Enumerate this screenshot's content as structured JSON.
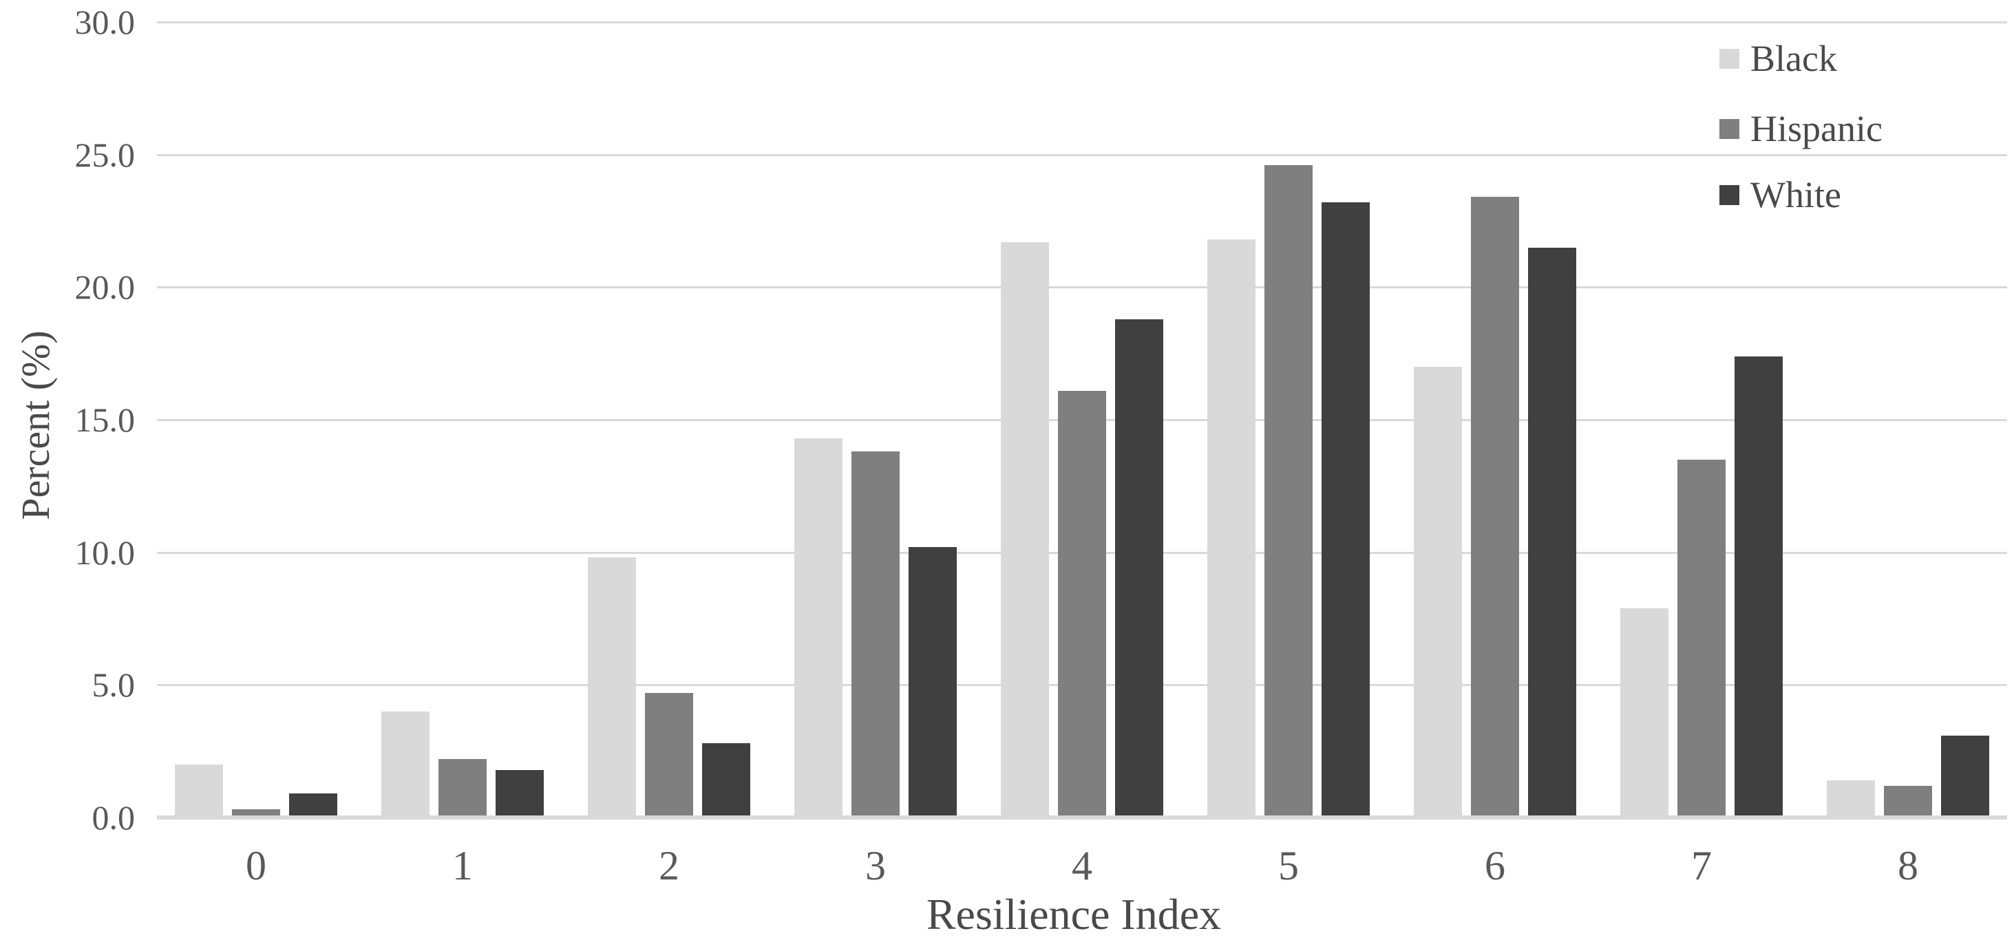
{
  "chart_data": {
    "type": "bar",
    "title": "",
    "xlabel": "Resilience Index",
    "ylabel": "Percent (%)",
    "categories": [
      "0",
      "1",
      "2",
      "3",
      "4",
      "5",
      "6",
      "7",
      "8"
    ],
    "series": [
      {
        "name": "Black",
        "color": "#d9d9d9",
        "values": [
          2.0,
          4.0,
          9.8,
          14.3,
          21.7,
          21.8,
          17.0,
          7.9,
          1.4
        ]
      },
      {
        "name": "Hispanic",
        "color": "#7f7f7f",
        "values": [
          0.3,
          2.2,
          4.7,
          13.8,
          16.1,
          24.6,
          23.4,
          13.5,
          1.2
        ]
      },
      {
        "name": "White",
        "color": "#404040",
        "values": [
          0.9,
          1.8,
          2.8,
          10.2,
          18.8,
          23.2,
          21.5,
          17.4,
          3.1
        ]
      }
    ],
    "ylim": [
      0,
      30
    ],
    "ytick_step": 5,
    "ytick_labels": [
      "0.0",
      "5.0",
      "10.0",
      "15.0",
      "20.0",
      "25.0",
      "30.0"
    ],
    "grid": true,
    "legend_position": "top-right"
  },
  "colors": {
    "background": "#ffffff",
    "gridline": "#d9d9d9",
    "baseline": "#d9d9d9",
    "tick_text": "#595959",
    "label_text": "#4a4a4a"
  }
}
